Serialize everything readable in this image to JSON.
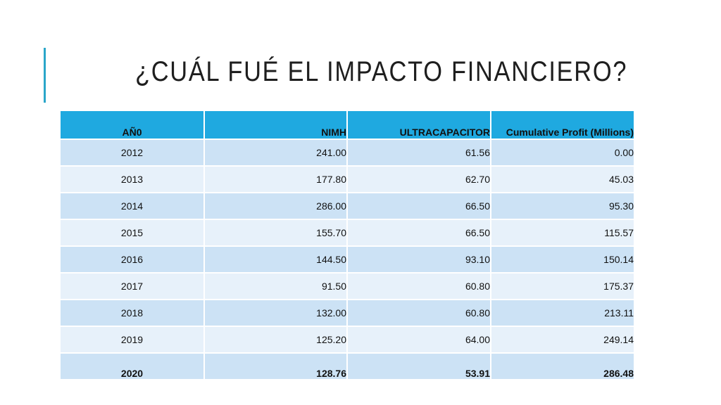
{
  "slide": {
    "title": "¿CUÁL FUÉ EL IMPACTO FINANCIERO?",
    "accent_color": "#2aa6c9",
    "header_color": "#1fa9e0",
    "row_color_odd": "#cce2f5",
    "row_color_even": "#e7f1fa"
  },
  "table": {
    "headers": [
      "AÑ0",
      "NIMH",
      "ULTRACAPACITOR",
      "Cumulative Profit (Millions)"
    ],
    "rows": [
      [
        "2012",
        "241.00",
        "61.56",
        "0.00"
      ],
      [
        "2013",
        "177.80",
        "62.70",
        "45.03"
      ],
      [
        "2014",
        "286.00",
        "66.50",
        "95.30"
      ],
      [
        "2015",
        "155.70",
        "66.50",
        "115.57"
      ],
      [
        "2016",
        "144.50",
        "93.10",
        "150.14"
      ],
      [
        "2017",
        "91.50",
        "60.80",
        "175.37"
      ],
      [
        "2018",
        "132.00",
        "60.80",
        "213.11"
      ],
      [
        "2019",
        "125.20",
        "64.00",
        "249.14"
      ],
      [
        "2020",
        "128.76",
        "53.91",
        "286.48"
      ]
    ]
  }
}
